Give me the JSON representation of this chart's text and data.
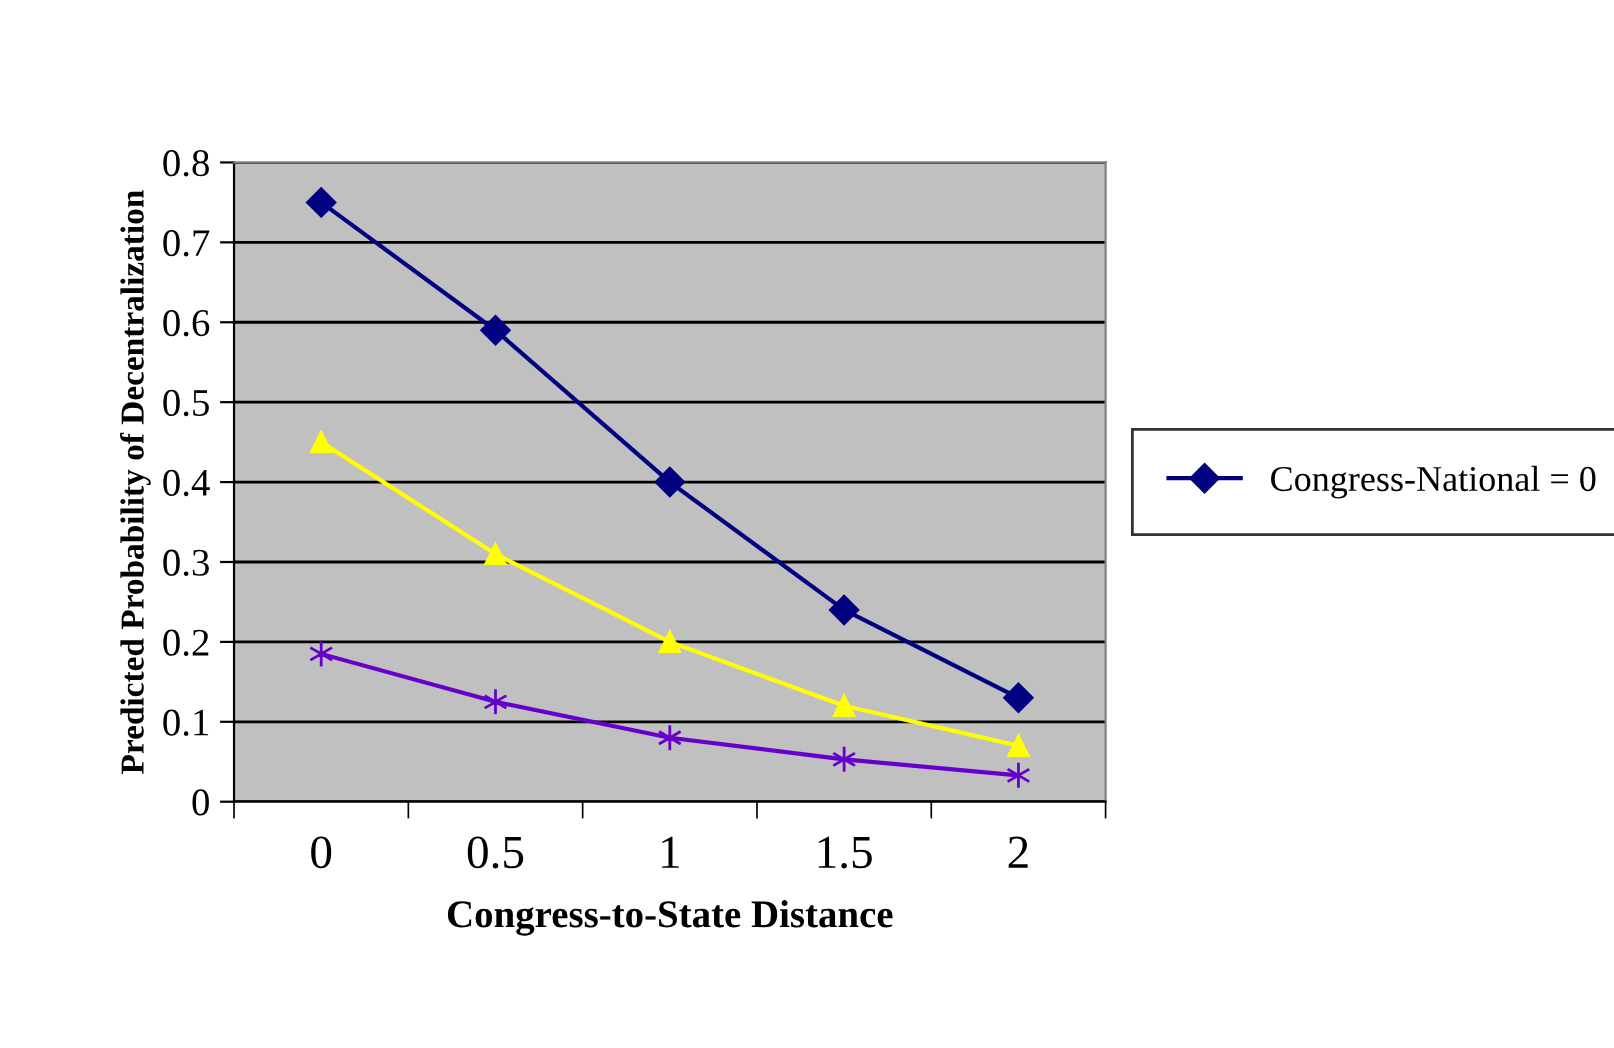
{
  "chart_data": {
    "type": "line",
    "xlabel": "Congress-to-State Distance",
    "ylabel": "Predicted Probability of Decentralization",
    "categories": [
      "0",
      "0.5",
      "1",
      "1.5",
      "2"
    ],
    "series": [
      {
        "name": "Congress-National = 0",
        "color": "#000080",
        "marker": "diamond",
        "values": [
          0.75,
          0.59,
          0.4,
          0.24,
          0.13
        ]
      },
      {
        "color": "#ffff00",
        "marker": "triangle",
        "values": [
          0.45,
          0.31,
          0.2,
          0.12,
          0.07
        ]
      },
      {
        "color": "#6600cc",
        "marker": "cross",
        "values": [
          0.185,
          0.125,
          0.08,
          0.053,
          0.033
        ]
      }
    ],
    "ylim": [
      0,
      0.8
    ],
    "yticks": [
      0,
      0.1,
      0.2,
      0.3,
      0.4,
      0.5,
      0.6,
      0.7,
      0.8
    ],
    "grid": "y",
    "legend": "right",
    "line_style": "solid"
  }
}
